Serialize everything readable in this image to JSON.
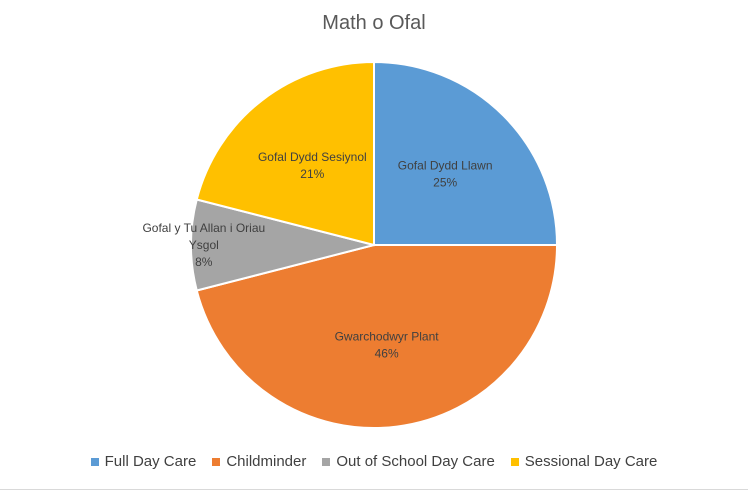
{
  "chart_data": {
    "type": "pie",
    "title": "Math o Ofal",
    "categories": [
      "Full Day Care",
      "Childminder",
      "Out of School Day Care",
      "Sessional Day Care"
    ],
    "slice_labels": [
      [
        "Gofal Dydd Llawn"
      ],
      [
        "Gwarchodwyr Plant"
      ],
      [
        "Gofal y Tu Allan i Oriau",
        "Ysgol"
      ],
      [
        "Gofal Dydd Sesiynol"
      ]
    ],
    "values": [
      25,
      46,
      8,
      21
    ],
    "value_labels": [
      "25%",
      "46%",
      "8%",
      "21%"
    ],
    "colors": [
      "#5b9bd5",
      "#ed7d31",
      "#a5a5a5",
      "#ffc000"
    ],
    "legend_position": "bottom"
  }
}
